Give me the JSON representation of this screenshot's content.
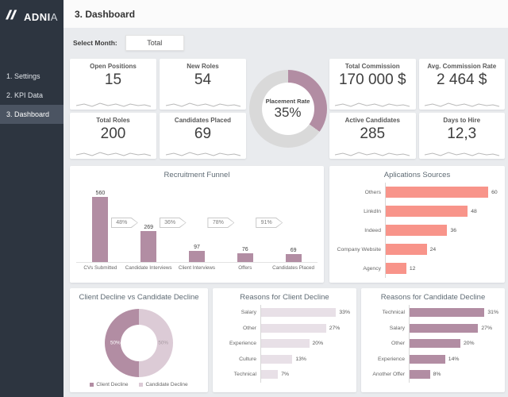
{
  "colors": {
    "accent_mauve": "#b28da3",
    "light_mauve": "#dccbd6",
    "pale_bar": "#e8e0e7",
    "salmon": "#f8948a",
    "donut_rest": "#d9d9d9"
  },
  "sidebar": {
    "logo_bold": "ADNI",
    "logo_light": "A",
    "items": [
      {
        "label": "1. Settings",
        "active": false
      },
      {
        "label": "2. KPI Data",
        "active": false
      },
      {
        "label": "3. Dashboard",
        "active": true
      }
    ]
  },
  "header": {
    "title": "3. Dashboard"
  },
  "filter": {
    "label": "Select Month:",
    "value": "Total"
  },
  "kpi_cards": {
    "left": [
      {
        "title": "Open Positions",
        "value": "15"
      },
      {
        "title": "New Roles",
        "value": "54"
      },
      {
        "title": "Total Roles",
        "value": "200"
      },
      {
        "title": "Candidates Placed",
        "value": "69"
      }
    ],
    "right": [
      {
        "title": "Total Commission",
        "value": "170 000 $"
      },
      {
        "title": "Avg. Commission Rate",
        "value": "2 464 $"
      },
      {
        "title": "Active Candidates",
        "value": "285"
      },
      {
        "title": "Days to Hire",
        "value": "12,3"
      }
    ]
  },
  "placement_rate": {
    "label": "Placement Rate",
    "value": "35%",
    "percent": 35
  },
  "chart_data": [
    {
      "id": "recruitment_funnel",
      "type": "bar",
      "title": "Recruitment Funnel",
      "categories": [
        "CVs Submitted",
        "Candidate Interviews",
        "Client Interviews",
        "Offers",
        "Candidates Placed"
      ],
      "values": [
        560,
        269,
        97,
        76,
        69
      ],
      "conversion_labels": [
        "48%",
        "36%",
        "78%",
        "91%"
      ],
      "ylim": [
        0,
        600
      ],
      "grid": false
    },
    {
      "id": "applications_sources",
      "type": "bar",
      "orientation": "horizontal",
      "title": "Aplications Sources",
      "categories": [
        "Others",
        "LinkdIn",
        "Indeed",
        "Company Website",
        "Agency"
      ],
      "values": [
        60,
        48,
        36,
        24,
        12
      ],
      "xlim": [
        0,
        66
      ],
      "grid": false
    },
    {
      "id": "decline_split",
      "type": "pie",
      "title": "Client Decline vs Candidate Decline",
      "slices": [
        {
          "label": "Client Decline",
          "percent": 50,
          "value_label": "50%"
        },
        {
          "label": "Candidate Decline",
          "percent": 50,
          "value_label": "50%"
        }
      ],
      "legend_position": "bottom"
    },
    {
      "id": "client_decline_reasons",
      "type": "bar",
      "orientation": "horizontal",
      "title": "Reasons for Client Decline",
      "categories": [
        "Salary",
        "Other",
        "Experience",
        "Culture",
        "Technical"
      ],
      "values": [
        33,
        27,
        20,
        13,
        7
      ],
      "value_suffix": "%",
      "xlim": [
        0,
        37
      ],
      "grid": false
    },
    {
      "id": "candidate_decline_reasons",
      "type": "bar",
      "orientation": "horizontal",
      "title": "Reasons for Candidate Decline",
      "categories": [
        "Technical",
        "Salary",
        "Other",
        "Experience",
        "Another Offer"
      ],
      "values": [
        31,
        27,
        20,
        14,
        8
      ],
      "value_suffix": "%",
      "xlim": [
        0,
        35
      ],
      "grid": false
    }
  ]
}
